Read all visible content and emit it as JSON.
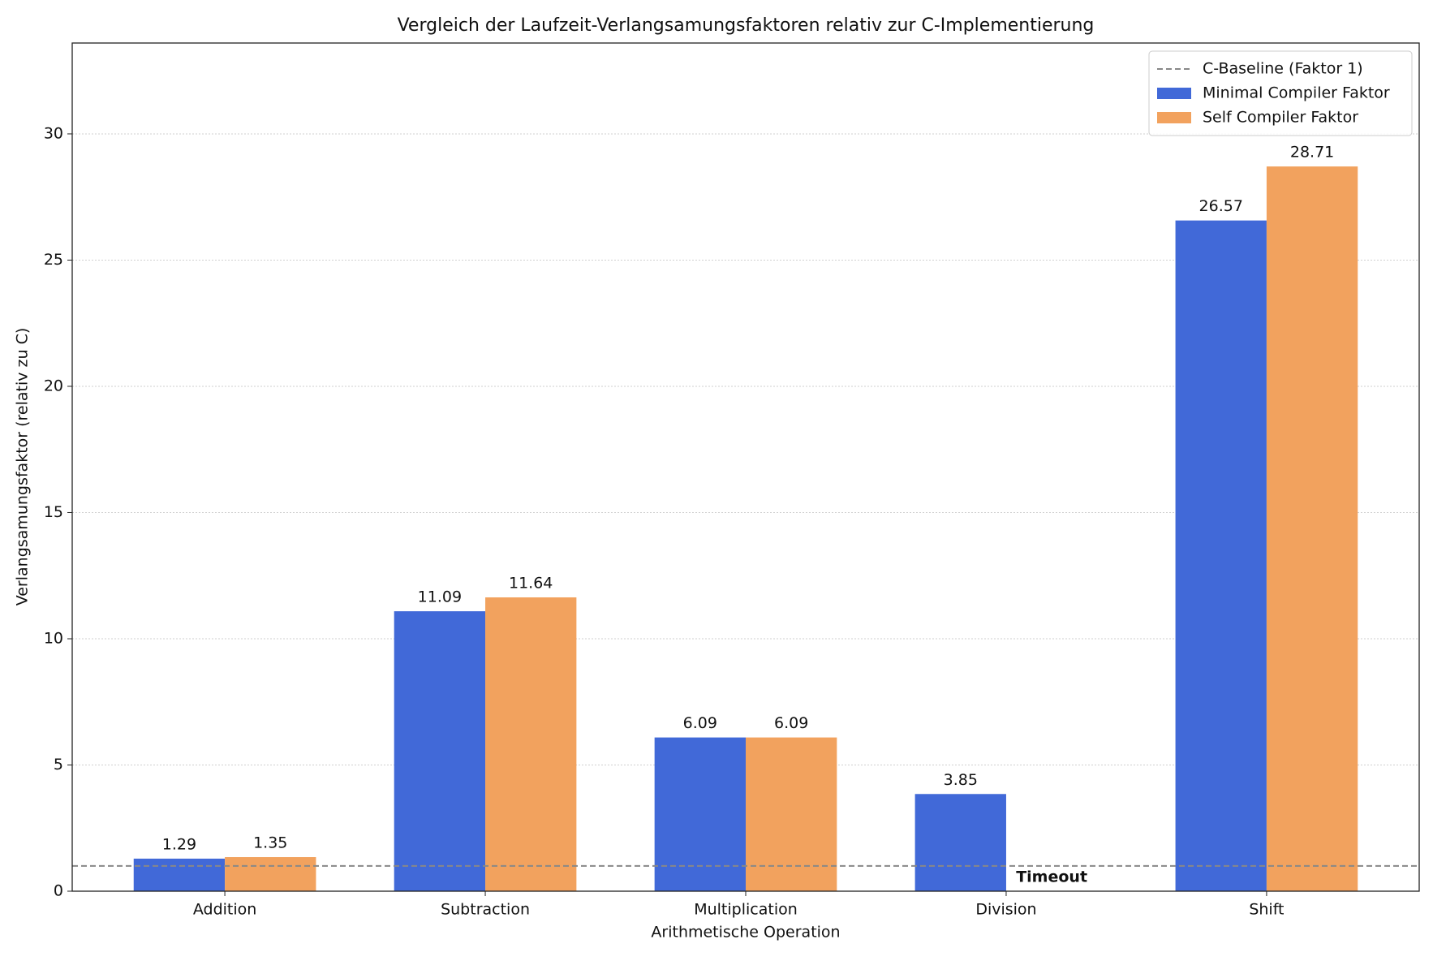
{
  "chart_data": {
    "type": "bar",
    "title": "Vergleich der Laufzeit-Verlangsamungsfaktoren relativ zur C-Implementierung",
    "x_label": "Arithmetische Operation",
    "y_label": "Verlangsamungsfaktor (relativ zu C)",
    "categories": [
      "Addition",
      "Subtraction",
      "Multiplication",
      "Division",
      "Shift"
    ],
    "series": [
      {
        "name": "Minimal Compiler Faktor",
        "color": "#4169d8",
        "values": [
          1.29,
          11.09,
          6.09,
          3.85,
          26.57
        ]
      },
      {
        "name": "Self Compiler Faktor",
        "color": "#f2a25e",
        "values": [
          1.35,
          11.64,
          6.09,
          null,
          28.71
        ]
      }
    ],
    "baseline": {
      "name": "C-Baseline (Faktor 1)",
      "value": 1,
      "color": "#888888"
    },
    "annotation": {
      "text": "Timeout",
      "color": "#c62828"
    },
    "ylim": [
      0,
      33.6
    ],
    "yticks": [
      0,
      5,
      10,
      15,
      20,
      25,
      30
    ],
    "grid": true,
    "legend": "upper right"
  }
}
